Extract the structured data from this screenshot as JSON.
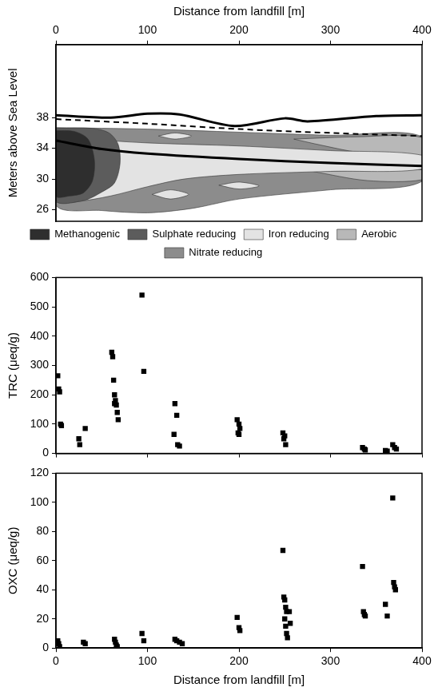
{
  "chart_data": [
    {
      "type": "area",
      "xlabel": "Distance from landfill [m]",
      "ylabel": "Meters above Sea Level",
      "xlim": [
        0,
        400
      ],
      "xticks": [
        0,
        100,
        200,
        300,
        400
      ],
      "ylim": [
        24.5,
        47.5
      ],
      "yticks": [
        26,
        30,
        34,
        38
      ],
      "grid": false,
      "legend": "bottom",
      "series": [
        {
          "name": "Methanogenic",
          "color": "#2e2e2e",
          "polygons": [
            {
              "x": [
                0,
                20,
                35,
                42,
                40,
                30,
                15,
                0
              ],
              "y": [
                36.3,
                36.2,
                35.2,
                32.5,
                29.8,
                28.2,
                27.8,
                27.8
              ]
            }
          ]
        },
        {
          "name": "Sulphate reducing",
          "color": "#5c5c5c",
          "polygons": [
            {
              "x": [
                0,
                40,
                58,
                68,
                70,
                64,
                50,
                30,
                0
              ],
              "y": [
                36.6,
                36.6,
                36.0,
                34.5,
                32.0,
                29.5,
                28.3,
                27.2,
                27.2
              ]
            }
          ]
        },
        {
          "name": "Iron reducing",
          "color": "#e3e3e3",
          "polygons": [
            {
              "x": [
                30,
                100,
                200,
                300,
                400,
                400,
                300,
                200,
                140,
                100,
                60,
                20,
                0,
                0
              ],
              "y": [
                35.2,
                34.7,
                34.3,
                33.7,
                33.1,
                31.3,
                31.0,
                30.6,
                30.0,
                29.0,
                27.8,
                27.0,
                27.0,
                27.8
              ]
            },
            {
              "x": [
                105,
                125,
                145,
                125
              ],
              "y": [
                28.0,
                28.6,
                28.0,
                27.4
              ]
            },
            {
              "x": [
                178,
                200,
                222,
                200
              ],
              "y": [
                29.2,
                29.6,
                29.1,
                28.7
              ]
            },
            {
              "x": [
                112,
                130,
                148,
                130
              ],
              "y": [
                35.6,
                36.0,
                35.6,
                35.2
              ]
            }
          ]
        },
        {
          "name": "Aerobic",
          "color": "#b8b8b8",
          "polygons": [
            {
              "x": [
                260,
                330,
                400,
                400,
                330,
                290
              ],
              "y": [
                35.2,
                35.5,
                35.4,
                33.1,
                33.5,
                34.4
              ]
            },
            {
              "x": [
                280,
                340,
                400,
                400,
                340
              ],
              "y": [
                31.0,
                31.1,
                31.2,
                29.9,
                29.8
              ]
            }
          ]
        },
        {
          "name": "Nitrate reducing",
          "color": "#8c8c8c",
          "polygons": [
            {
              "x": [
                0,
                100,
                200,
                300,
                400,
                400,
                300,
                200,
                150,
                100,
                50,
                0
              ],
              "y": [
                36.7,
                36.5,
                36.1,
                35.7,
                35.5,
                29.7,
                28.6,
                27.4,
                26.2,
                25.6,
                25.9,
                26.6
              ]
            }
          ]
        }
      ],
      "lines": [
        {
          "color": "#000000",
          "line_style": "solid",
          "x": [
            0,
            60,
            100,
            135,
            195,
            250,
            275,
            350,
            400
          ],
          "y": [
            38.3,
            38.0,
            38.5,
            38.4,
            36.9,
            37.9,
            37.5,
            38.2,
            38.3
          ]
        },
        {
          "color": "#000000",
          "line_style": "dashed",
          "x": [
            0,
            100,
            200,
            300,
            400
          ],
          "y": [
            37.8,
            37.2,
            36.5,
            36.0,
            35.6
          ]
        },
        {
          "color": "#000000",
          "line_style": "solid",
          "x": [
            0,
            50,
            100,
            200,
            300,
            400
          ],
          "y": [
            35.0,
            33.9,
            33.3,
            32.6,
            32.1,
            31.7
          ]
        }
      ]
    },
    {
      "type": "scatter",
      "ylabel": "TRC (μeq/g)",
      "xlim": [
        0,
        400
      ],
      "xticks": [
        0,
        100,
        200,
        300,
        400
      ],
      "ylim": [
        0,
        600
      ],
      "yticks": [
        0,
        100,
        200,
        300,
        400,
        500,
        600
      ],
      "grid": false,
      "tick_labels": "y",
      "color": "#000000",
      "marker": "square",
      "x": [
        2,
        3,
        4,
        5,
        6,
        25,
        26,
        32,
        61,
        62,
        63,
        64,
        65,
        66,
        67,
        68,
        64,
        94,
        96,
        130,
        132,
        129,
        133,
        135,
        198,
        200,
        201,
        199,
        200,
        248,
        250,
        249,
        251,
        335,
        337,
        338,
        360,
        362,
        368,
        370,
        372
      ],
      "values": [
        265,
        220,
        210,
        100,
        95,
        50,
        30,
        85,
        345,
        330,
        250,
        200,
        180,
        165,
        140,
        115,
        170,
        540,
        280,
        170,
        130,
        65,
        30,
        25,
        115,
        100,
        85,
        70,
        65,
        70,
        60,
        50,
        30,
        20,
        15,
        12,
        10,
        8,
        30,
        20,
        15
      ]
    },
    {
      "type": "scatter",
      "xlabel": "Distance from landfill [m]",
      "ylabel": "OXC (μeq/g)",
      "xlim": [
        0,
        400
      ],
      "xticks": [
        0,
        100,
        200,
        300,
        400
      ],
      "ylim": [
        0,
        120
      ],
      "yticks": [
        0,
        20,
        40,
        60,
        80,
        100,
        120
      ],
      "grid": false,
      "color": "#000000",
      "marker": "square",
      "x": [
        2,
        3,
        4,
        30,
        32,
        64,
        65,
        66,
        67,
        94,
        96,
        130,
        132,
        135,
        138,
        198,
        200,
        201,
        248,
        249,
        250,
        251,
        252,
        250,
        251,
        252,
        253,
        255,
        256,
        335,
        336,
        337,
        338,
        360,
        362,
        368,
        369,
        370,
        371
      ],
      "values": [
        5,
        3,
        1,
        4,
        3,
        6,
        4,
        2,
        1,
        10,
        5,
        6,
        5,
        4,
        3,
        21,
        14,
        12,
        67,
        35,
        33,
        28,
        25,
        20,
        15,
        10,
        7,
        25,
        17,
        56,
        25,
        23,
        22,
        30,
        22,
        103,
        45,
        42,
        40
      ]
    }
  ]
}
